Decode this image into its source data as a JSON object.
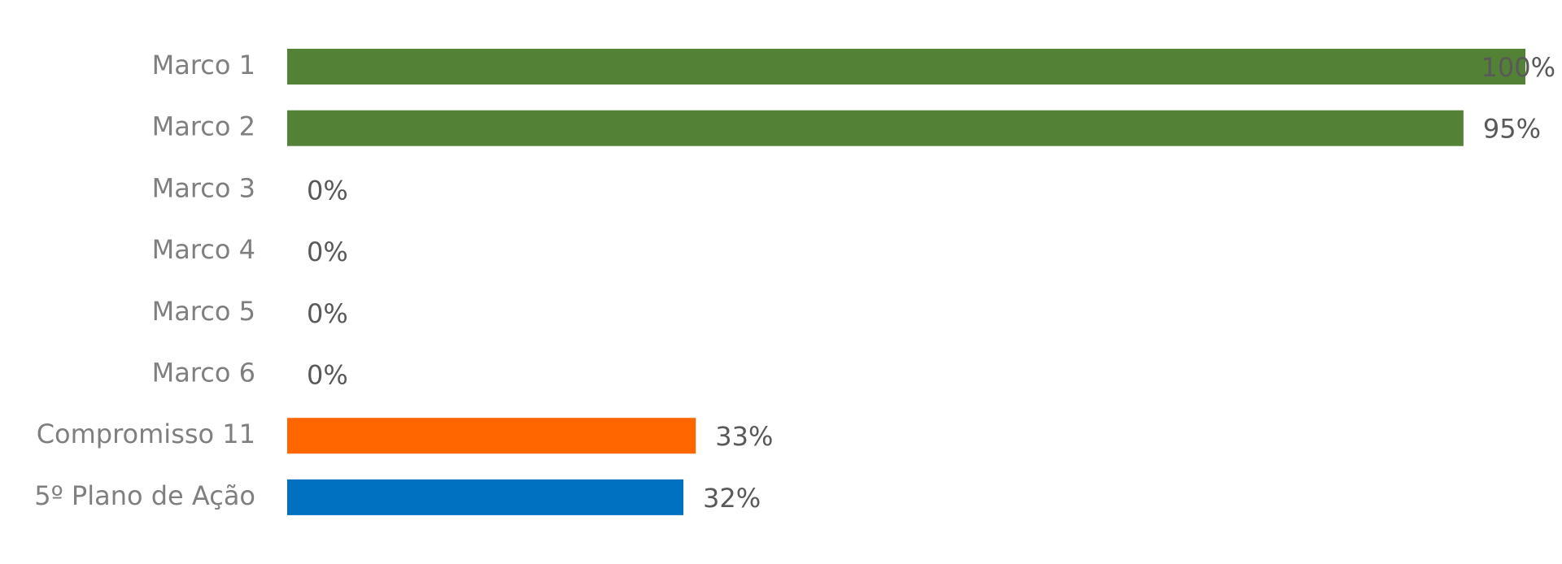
{
  "chart_data": {
    "type": "bar",
    "orientation": "horizontal",
    "categories": [
      "Marco 1",
      "Marco 2",
      "Marco 3",
      "Marco 4",
      "Marco 5",
      "Marco 6",
      "Compromisso 11",
      "5º Plano de Ação"
    ],
    "values": [
      100,
      95,
      0,
      0,
      0,
      0,
      33,
      32
    ],
    "value_labels": [
      "100%",
      "95%",
      "0%",
      "0%",
      "0%",
      "0%",
      "33%",
      "32%"
    ],
    "colors": [
      "#538135",
      "#538135",
      "#538135",
      "#538135",
      "#538135",
      "#538135",
      "#FF6600",
      "#0070C0"
    ],
    "xlim": [
      0,
      100
    ]
  }
}
